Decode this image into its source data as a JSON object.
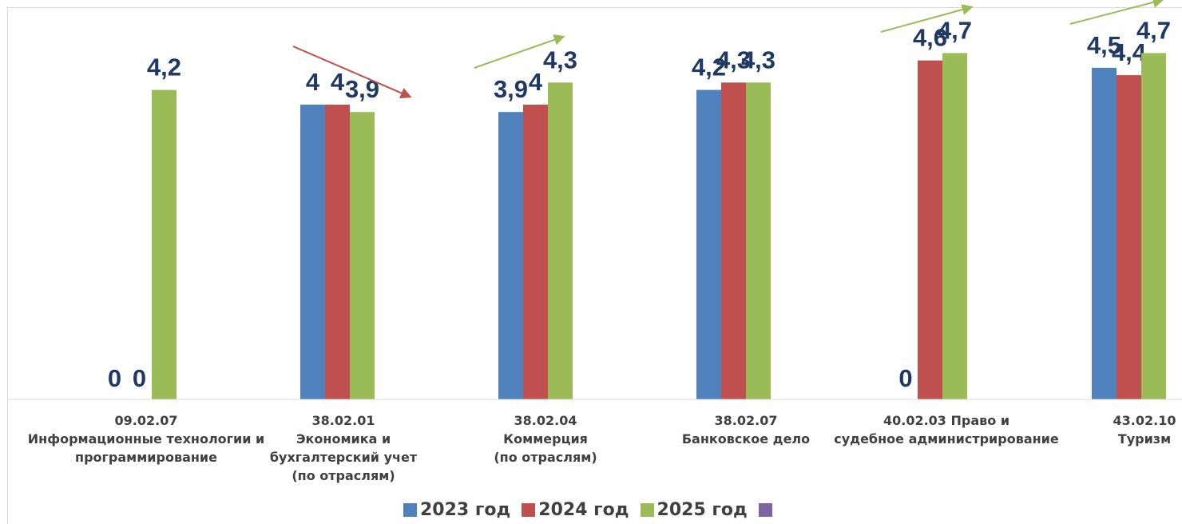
{
  "chart_data": {
    "type": "bar",
    "categories": [
      [
        "09.02.07",
        "Информационные технологии и",
        "программирование"
      ],
      [
        "38.02.01",
        "Экономика и",
        "бухгалтерский учет",
        "(по отраслям)"
      ],
      [
        "38.02.04",
        "Коммерция",
        "(по отраслям)"
      ],
      [
        "38.02.07",
        "Банковское дело"
      ],
      [
        "40.02.03 Право и",
        "судебное администрирование"
      ],
      [
        "43.02.10",
        "Туризм"
      ]
    ],
    "series": [
      {
        "name": "2023  год",
        "color": "#4f81bd",
        "values": [
          0,
          4,
          3.9,
          4.2,
          null,
          4.5
        ],
        "labels": [
          "0",
          "4",
          "3,9",
          "4,2",
          "",
          "4,5"
        ]
      },
      {
        "name": "2024 год",
        "color": "#c0504d",
        "values": [
          0,
          4,
          4,
          4.3,
          4.6,
          4.4
        ],
        "labels": [
          "0",
          "4",
          "4",
          "4,3",
          "4,6",
          "4,4"
        ]
      },
      {
        "name": "2025 год",
        "color": "#9bbb59",
        "values": [
          4.2,
          3.9,
          4.3,
          4.3,
          4.7,
          4.7
        ],
        "labels": [
          "4,2",
          "3,9",
          "4,3",
          "4,3",
          "4,7",
          "4,7"
        ]
      }
    ],
    "extra_legend_swatch": "#8064a2",
    "zero_label_2023_group5": "0",
    "trend_arrows": [
      {
        "group": 1,
        "direction": "down",
        "color": "#c0504d"
      },
      {
        "group": 2,
        "direction": "up",
        "color": "#9bbb59"
      },
      {
        "group": 4,
        "direction": "up",
        "color": "#9bbb59"
      },
      {
        "group": 5,
        "direction": "up",
        "color": "#9bbb59"
      }
    ],
    "ylim": [
      0,
      4.7
    ],
    "grid": false,
    "legend_position": "bottom"
  }
}
